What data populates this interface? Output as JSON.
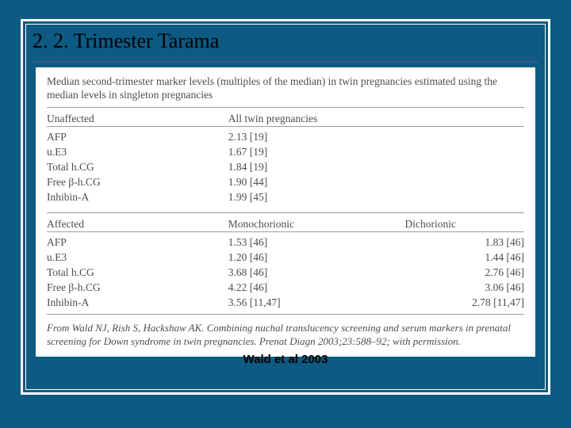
{
  "slide": {
    "title": "2. 2. Trimester Tarama",
    "attribution": "Wald et al 2003"
  },
  "table": {
    "type": "table",
    "caption": "Median second-trimester marker levels (multiples of the median) in twin pregnancies estimated using the median levels in singleton pregnancies",
    "colors": {
      "slide_bg": "#0d5a82",
      "frame_border": "#ffffff",
      "title_underline": "#385d8a",
      "table_bg": "#ffffff",
      "text_color": "#4d4d4d",
      "rule_color": "#9c9c9c"
    },
    "font": {
      "family_title": "Times New Roman",
      "title_size_pt": 26,
      "family_body": "Times New Roman",
      "body_size_pt": 13.5,
      "attribution_family": "Arial",
      "attribution_size_pt": 15,
      "attribution_weight": "bold"
    },
    "section1": {
      "head_left": "Unaffected",
      "head_mid": "All twin pregnancies",
      "rows": [
        {
          "marker": "AFP",
          "val": "2.13 [19]"
        },
        {
          "marker": "u.E3",
          "val": "1.67 [19]"
        },
        {
          "marker": "Total h.CG",
          "val": "1.84 [19]"
        },
        {
          "marker": "Free β-h.CG",
          "val": "1.90 [44]"
        },
        {
          "marker": "Inhibin-A",
          "val": "1.99 [45]"
        }
      ]
    },
    "section2": {
      "head_left": "Affected",
      "head_mid": "Monochorionic",
      "head_right": "Dichorionic",
      "rows": [
        {
          "marker": "AFP",
          "mono": "1.53 [46]",
          "di": "1.83 [46]"
        },
        {
          "marker": "u.E3",
          "mono": "1.20 [46]",
          "di": "1.44 [46]"
        },
        {
          "marker": "Total h.CG",
          "mono": "3.68 [46]",
          "di": "2.76 [46]"
        },
        {
          "marker": "Free β-h.CG",
          "mono": "4.22 [46]",
          "di": "3.06 [46]"
        },
        {
          "marker": "Inhibin-A",
          "mono": "3.56 [11,47]",
          "di": "2.78 [11,47]"
        }
      ]
    },
    "source_note": "From Wald NJ, Rish S, Hackshaw AK. Combining nuchal translucency screening and serum markers in prenatal screening for Down syndrome in twin pregnancies. Prenat Diagn 2003;23:588–92; with permission."
  }
}
